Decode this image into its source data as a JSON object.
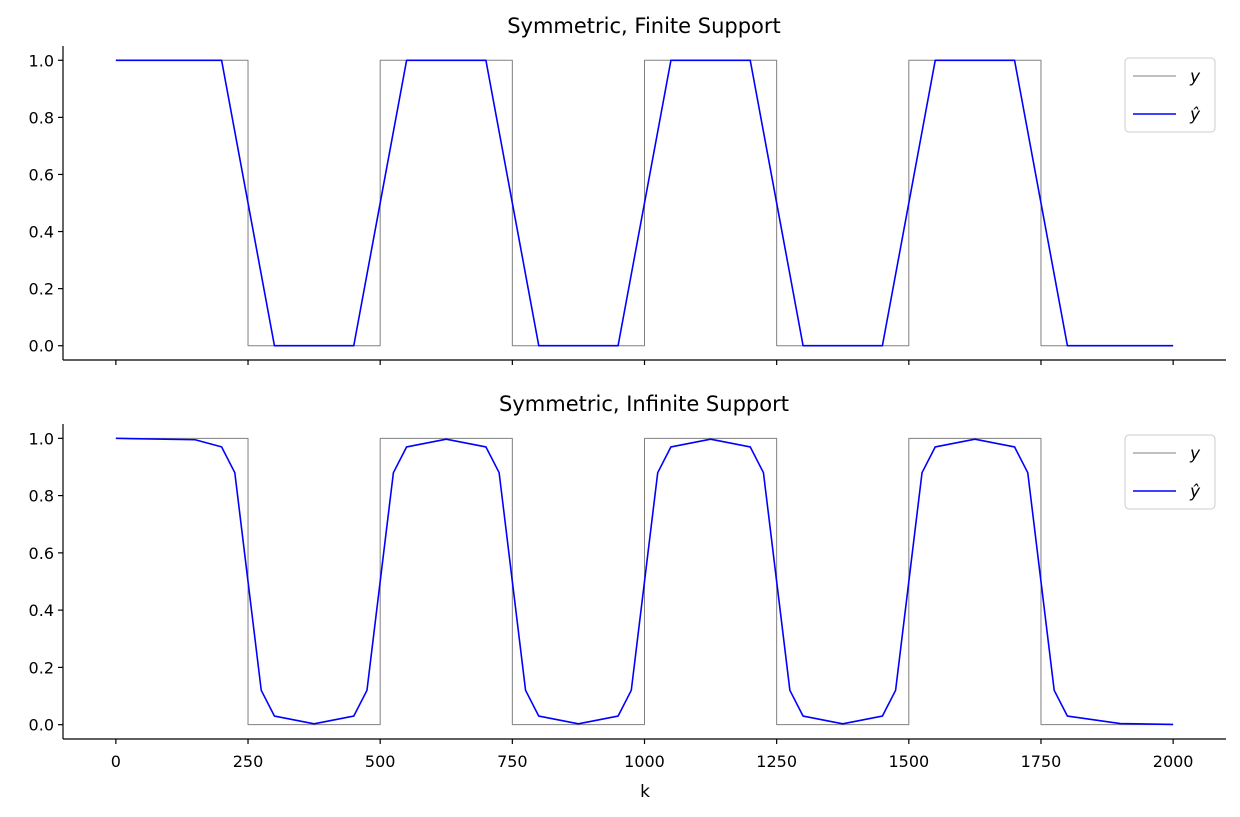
{
  "colors": {
    "y": "#808080",
    "yhat": "#0000ff"
  },
  "xlabel": "k",
  "x_ticks": [
    0,
    250,
    500,
    750,
    1000,
    1250,
    1500,
    1750,
    2000
  ],
  "x_tick_labels": [
    "0",
    "250",
    "500",
    "750",
    "1000",
    "1250",
    "1500",
    "1750",
    "2000"
  ],
  "y_ticks": [
    0.0,
    0.2,
    0.4,
    0.6,
    0.8,
    1.0
  ],
  "y_tick_labels": [
    "0.0",
    "0.2",
    "0.4",
    "0.6",
    "0.8",
    "1.0"
  ],
  "legend": {
    "y": "y",
    "yhat": "ŷ"
  },
  "chart_data": [
    {
      "type": "line",
      "title": "Symmetric, Finite Support",
      "xlim": [
        -100,
        2100
      ],
      "ylim": [
        -0.05,
        1.05
      ],
      "legend_position": "upper right",
      "series": [
        {
          "name": "y",
          "x": [
            0,
            250,
            250,
            500,
            500,
            750,
            750,
            1000,
            1000,
            1250,
            1250,
            1500,
            1500,
            1750,
            1750,
            2000
          ],
          "y": [
            1,
            1,
            0,
            0,
            1,
            1,
            0,
            0,
            1,
            1,
            0,
            0,
            1,
            1,
            0,
            0
          ]
        },
        {
          "name": "ŷ",
          "x": [
            0,
            200,
            300,
            450,
            550,
            700,
            800,
            950,
            1050,
            1200,
            1300,
            1450,
            1550,
            1700,
            1800,
            2000
          ],
          "y": [
            1,
            1,
            0,
            0,
            1,
            1,
            0,
            0,
            1,
            1,
            0,
            0,
            1,
            1,
            0,
            0
          ]
        }
      ]
    },
    {
      "type": "line",
      "title": "Symmetric, Infinite Support",
      "xlabel": "k",
      "xlim": [
        -100,
        2100
      ],
      "ylim": [
        -0.05,
        1.05
      ],
      "legend_position": "upper right",
      "series": [
        {
          "name": "y",
          "x": [
            0,
            250,
            250,
            500,
            500,
            750,
            750,
            1000,
            1000,
            1250,
            1250,
            1500,
            1500,
            1750,
            1750,
            2000
          ],
          "y": [
            1,
            1,
            0,
            0,
            1,
            1,
            0,
            0,
            1,
            1,
            0,
            0,
            1,
            1,
            0,
            0
          ]
        },
        {
          "name": "ŷ",
          "x": [
            0,
            150,
            200,
            225,
            250,
            275,
            300,
            375,
            450,
            475,
            500,
            525,
            550,
            625,
            700,
            725,
            750,
            775,
            800,
            875,
            950,
            975,
            1000,
            1025,
            1050,
            1125,
            1200,
            1225,
            1250,
            1275,
            1300,
            1375,
            1450,
            1475,
            1500,
            1525,
            1550,
            1625,
            1700,
            1725,
            1750,
            1775,
            1800,
            1900,
            2000
          ],
          "y": [
            1.0,
            0.995,
            0.97,
            0.88,
            0.5,
            0.12,
            0.03,
            0.003,
            0.03,
            0.12,
            0.5,
            0.88,
            0.97,
            0.997,
            0.97,
            0.88,
            0.5,
            0.12,
            0.03,
            0.003,
            0.03,
            0.12,
            0.5,
            0.88,
            0.97,
            0.997,
            0.97,
            0.88,
            0.5,
            0.12,
            0.03,
            0.003,
            0.03,
            0.12,
            0.5,
            0.88,
            0.97,
            0.997,
            0.97,
            0.88,
            0.5,
            0.12,
            0.03,
            0.004,
            0.001
          ]
        }
      ]
    }
  ]
}
